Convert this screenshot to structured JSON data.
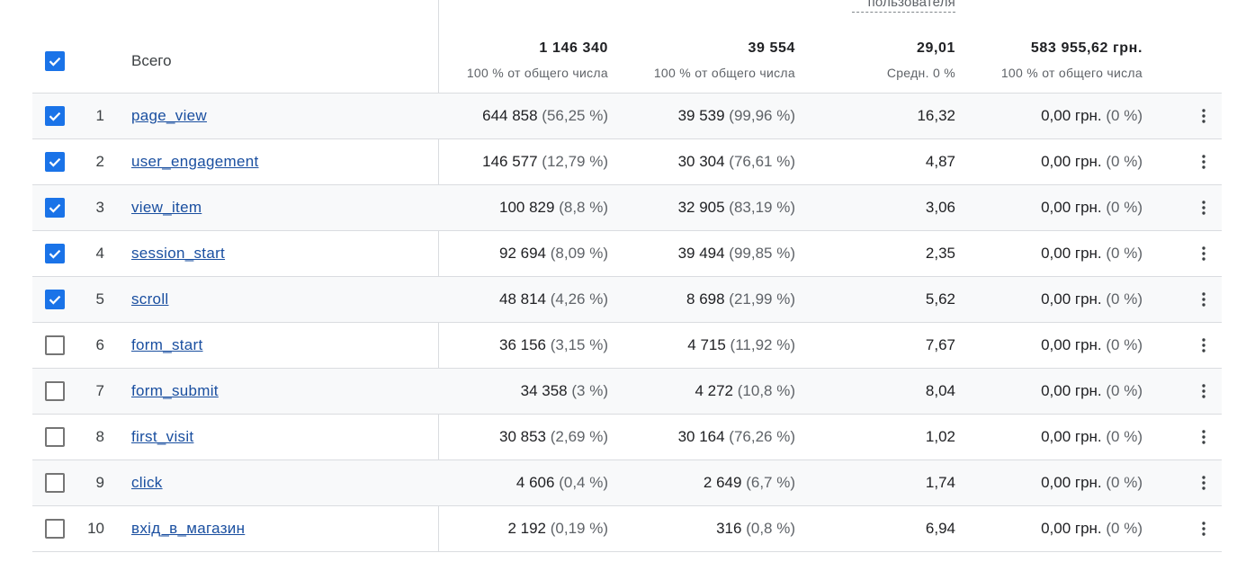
{
  "header": {
    "partial_label": "пользователя",
    "total_label": "Всего",
    "all_selected": true,
    "columns": [
      {
        "value": "1 146 340",
        "sub": "100 % от общего числа"
      },
      {
        "value": "39 554",
        "sub": "100 % от общего числа"
      },
      {
        "value": "29,01",
        "sub": "Средн. 0 %"
      },
      {
        "value": "583 955,62 грн.",
        "sub": "100 % от общего числа"
      }
    ]
  },
  "colors": {
    "checkbox_on": "#1a73e8",
    "link": "#1a4fa0",
    "row_shade": "#f8f9fa",
    "divider": "#dadce0"
  },
  "rows": [
    {
      "index": "1",
      "name": "page_view",
      "checked": true,
      "shaded": true,
      "c1": "644 858",
      "c1p": "(56,25 %)",
      "c2": "39 539",
      "c2p": "(99,96 %)",
      "c3": "16,32",
      "c4": "0,00 грн.",
      "c4p": "(0 %)"
    },
    {
      "index": "2",
      "name": "user_engagement",
      "checked": true,
      "shaded": false,
      "c1": "146 577",
      "c1p": "(12,79 %)",
      "c2": "30 304",
      "c2p": "(76,61 %)",
      "c3": "4,87",
      "c4": "0,00 грн.",
      "c4p": "(0 %)"
    },
    {
      "index": "3",
      "name": "view_item",
      "checked": true,
      "shaded": true,
      "c1": "100 829",
      "c1p": "(8,8 %)",
      "c2": "32 905",
      "c2p": "(83,19 %)",
      "c3": "3,06",
      "c4": "0,00 грн.",
      "c4p": "(0 %)"
    },
    {
      "index": "4",
      "name": "session_start",
      "checked": true,
      "shaded": false,
      "c1": "92 694",
      "c1p": "(8,09 %)",
      "c2": "39 494",
      "c2p": "(99,85 %)",
      "c3": "2,35",
      "c4": "0,00 грн.",
      "c4p": "(0 %)"
    },
    {
      "index": "5",
      "name": "scroll",
      "checked": true,
      "shaded": true,
      "c1": "48 814",
      "c1p": "(4,26 %)",
      "c2": "8 698",
      "c2p": "(21,99 %)",
      "c3": "5,62",
      "c4": "0,00 грн.",
      "c4p": "(0 %)"
    },
    {
      "index": "6",
      "name": "form_start",
      "checked": false,
      "shaded": false,
      "c1": "36 156",
      "c1p": "(3,15 %)",
      "c2": "4 715",
      "c2p": "(11,92 %)",
      "c3": "7,67",
      "c4": "0,00 грн.",
      "c4p": "(0 %)"
    },
    {
      "index": "7",
      "name": "form_submit",
      "checked": false,
      "shaded": true,
      "c1": "34 358",
      "c1p": "(3 %)",
      "c2": "4 272",
      "c2p": "(10,8 %)",
      "c3": "8,04",
      "c4": "0,00 грн.",
      "c4p": "(0 %)"
    },
    {
      "index": "8",
      "name": "first_visit",
      "checked": false,
      "shaded": false,
      "c1": "30 853",
      "c1p": "(2,69 %)",
      "c2": "30 164",
      "c2p": "(76,26 %)",
      "c3": "1,02",
      "c4": "0,00 грн.",
      "c4p": "(0 %)"
    },
    {
      "index": "9",
      "name": "click",
      "checked": false,
      "shaded": true,
      "c1": "4 606",
      "c1p": "(0,4 %)",
      "c2": "2 649",
      "c2p": "(6,7 %)",
      "c3": "1,74",
      "c4": "0,00 грн.",
      "c4p": "(0 %)"
    },
    {
      "index": "10",
      "name": "вхід_в_магазин",
      "checked": false,
      "shaded": false,
      "c1": "2 192",
      "c1p": "(0,19 %)",
      "c2": "316",
      "c2p": "(0,8 %)",
      "c3": "6,94",
      "c4": "0,00 грн.",
      "c4p": "(0 %)"
    }
  ]
}
